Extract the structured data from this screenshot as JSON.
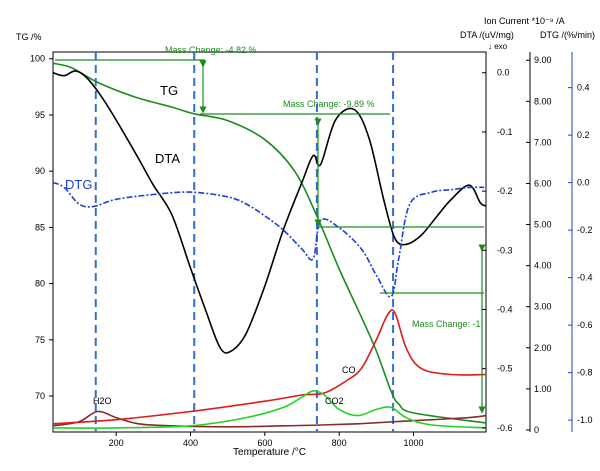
{
  "chart_data": {
    "type": "line",
    "xlabel": "Temperature /°C",
    "x_ticks": [
      200,
      400,
      600,
      800,
      1000
    ],
    "xlim": [
      30,
      1195
    ],
    "axes": {
      "tg": {
        "label": "TG /%",
        "ticks": [
          100,
          95,
          90,
          85,
          80,
          75,
          70
        ],
        "ylim": [
          66.8,
          100.6
        ]
      },
      "dta": {
        "label": "DTA /(uV/mg)",
        "ticks": [
          0.0,
          -0.1,
          -0.2,
          -0.3,
          -0.4,
          -0.5,
          -0.6
        ],
        "ylim": [
          -0.607,
          0.035
        ],
        "exo_marker": "↓ exo"
      },
      "ion": {
        "label": "Ion Current *10⁻⁹ /A",
        "ticks": [
          9.0,
          8.0,
          7.0,
          6.0,
          5.0,
          4.0,
          3.0,
          2.0,
          1.0,
          0.0
        ],
        "tick_labels": [
          "9.00",
          "8.00",
          "7.00",
          "6.00",
          "5.00",
          "4.00",
          "3.00",
          "2.00",
          "1.00",
          "0"
        ],
        "ylim": [
          -0.05,
          9.2
        ]
      },
      "dtg": {
        "label": "DTG /(%/min)",
        "ticks": [
          0.4,
          0.2,
          0.0,
          -0.2,
          -0.4,
          -0.6,
          -0.8,
          -1.0
        ],
        "tick_labels": [
          "0.4",
          "0.2",
          "0.0",
          "-0.2",
          "-0.4",
          "-0.6",
          "-0.8",
          "-1.0"
        ],
        "ylim": [
          -1.05,
          0.55
        ]
      }
    },
    "series": [
      {
        "name": "TG",
        "axis": "tg",
        "color": "#1e8c1e",
        "x": [
          30,
          80,
          150,
          250,
          350,
          410,
          500,
          600,
          680,
          740,
          800,
          860,
          900,
          940,
          960,
          1000,
          1195
        ],
        "y": [
          99.6,
          99.2,
          97.9,
          96.6,
          95.7,
          95.1,
          94.5,
          92.8,
          90.0,
          86.0,
          81.3,
          77.0,
          74.0,
          70.4,
          69.3,
          68.5,
          67.6
        ]
      },
      {
        "name": "DTA",
        "axis": "dta",
        "color": "#000000",
        "x": [
          30,
          60,
          90,
          120,
          160,
          200,
          260,
          300,
          350,
          400,
          440,
          480,
          510,
          550,
          600,
          650,
          700,
          730,
          750,
          790,
          840,
          880,
          920,
          950,
          980,
          1020,
          1060,
          1100,
          1150,
          1180,
          1195
        ],
        "y": [
          0.0,
          -0.005,
          0.003,
          -0.008,
          -0.04,
          -0.08,
          -0.145,
          -0.19,
          -0.24,
          -0.33,
          -0.4,
          -0.465,
          -0.47,
          -0.44,
          -0.36,
          -0.265,
          -0.185,
          -0.14,
          -0.155,
          -0.08,
          -0.062,
          -0.11,
          -0.215,
          -0.28,
          -0.29,
          -0.275,
          -0.245,
          -0.215,
          -0.19,
          -0.22,
          -0.225
        ]
      },
      {
        "name": "DTG",
        "axis": "dtg",
        "color": "#1f3fd6",
        "x": [
          30,
          60,
          100,
          140,
          200,
          300,
          400,
          500,
          550,
          600,
          650,
          700,
          730,
          750,
          800,
          860,
          900,
          940,
          960,
          990,
          1050,
          1100,
          1150,
          1190
        ],
        "y": [
          0.0,
          -0.02,
          -0.09,
          -0.1,
          -0.07,
          -0.05,
          -0.04,
          -0.06,
          -0.09,
          -0.14,
          -0.2,
          -0.28,
          -0.32,
          -0.16,
          -0.19,
          -0.28,
          -0.39,
          -0.48,
          -0.32,
          -0.09,
          -0.04,
          -0.03,
          -0.02,
          -0.02
        ]
      },
      {
        "name": "H2O",
        "axis": "ion",
        "color": "#8b2a2a",
        "x": [
          30,
          100,
          150,
          200,
          260,
          350,
          450,
          550,
          650,
          750,
          850,
          950,
          1050,
          1150,
          1195
        ],
        "y": [
          0.1,
          0.2,
          0.45,
          0.3,
          0.15,
          0.1,
          0.08,
          0.08,
          0.1,
          0.12,
          0.15,
          0.2,
          0.25,
          0.3,
          0.35
        ]
      },
      {
        "name": "CO",
        "axis": "ion",
        "color": "#e01919",
        "x": [
          30,
          200,
          400,
          600,
          700,
          760,
          820,
          860,
          900,
          930,
          950,
          980,
          1020,
          1100,
          1195
        ],
        "y": [
          0.15,
          0.25,
          0.45,
          0.7,
          0.85,
          0.9,
          1.2,
          1.5,
          2.2,
          2.8,
          2.85,
          2.0,
          1.5,
          1.35,
          1.35
        ]
      },
      {
        "name": "CO2",
        "axis": "ion",
        "color": "#22d422",
        "x": [
          30,
          200,
          400,
          550,
          650,
          700,
          730,
          760,
          800,
          850,
          900,
          940,
          980,
          1050,
          1195
        ],
        "y": [
          0.05,
          0.05,
          0.1,
          0.3,
          0.55,
          0.8,
          0.95,
          0.85,
          0.5,
          0.35,
          0.5,
          0.55,
          0.3,
          0.12,
          0.05
        ]
      }
    ],
    "vlines": [
      145,
      410,
      740,
      945
    ],
    "annotations": [
      {
        "text": "Mass Change: -4.82 %",
        "color": "#1e8c1e"
      },
      {
        "text": "Mass Change: -9.89 %",
        "color": "#1e8c1e"
      },
      {
        "text": "Mass Change: -1",
        "color": "#1e8c1e"
      }
    ],
    "curve_labels": [
      "TG",
      "DTA",
      "DTG",
      "H2O",
      "CO",
      "CO2"
    ],
    "legend": "none",
    "grid": false
  }
}
